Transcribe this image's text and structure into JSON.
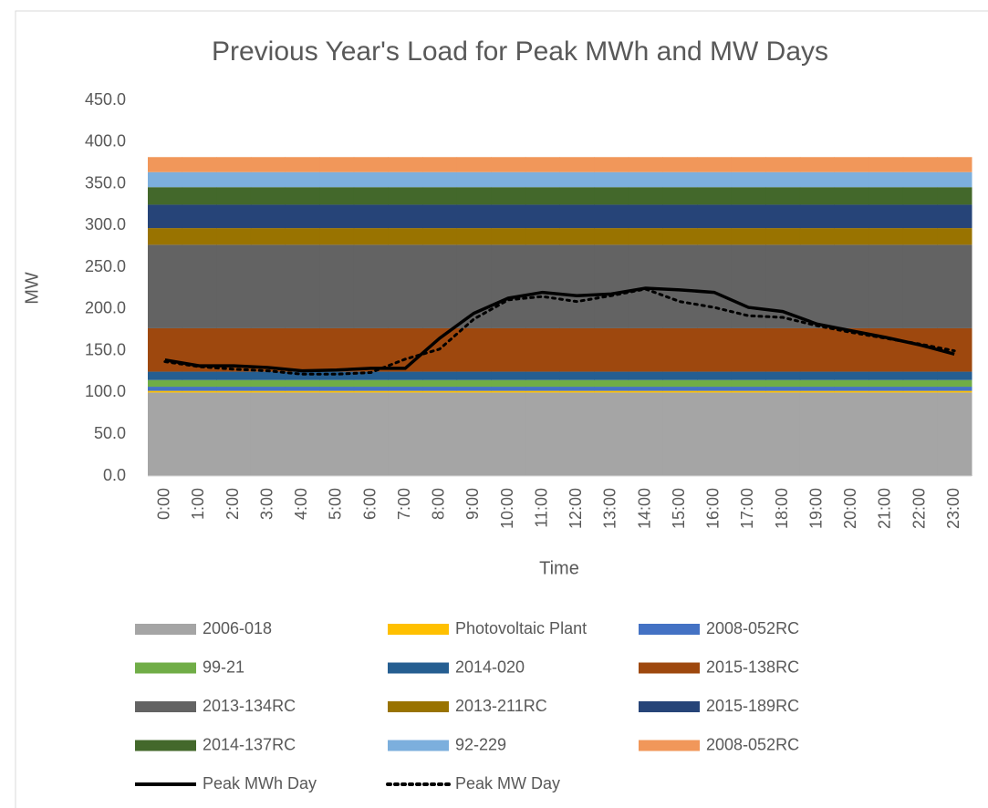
{
  "chart_data": {
    "type": "area",
    "title": "Previous Year's Load for Peak MWh and MW Days",
    "x_label": "Time",
    "y_label": "MW",
    "categories": [
      "0:00",
      "1:00",
      "2:00",
      "3:00",
      "4:00",
      "5:00",
      "6:00",
      "7:00",
      "8:00",
      "9:00",
      "10:00",
      "11:00",
      "12:00",
      "13:00",
      "14:00",
      "15:00",
      "16:00",
      "17:00",
      "18:00",
      "19:00",
      "20:00",
      "21:00",
      "22:00",
      "23:00"
    ],
    "ylim": [
      0,
      450
    ],
    "yticks": [
      {
        "value": 0,
        "label": "0.0"
      },
      {
        "value": 50,
        "label": "50.0"
      },
      {
        "value": 100,
        "label": "100.0"
      },
      {
        "value": 150,
        "label": "150.0"
      },
      {
        "value": 200,
        "label": "200.0"
      },
      {
        "value": 250,
        "label": "250.0"
      },
      {
        "value": 300,
        "label": "300.0"
      },
      {
        "value": 350,
        "label": "350.0"
      },
      {
        "value": 400,
        "label": "400.0"
      },
      {
        "value": 450,
        "label": "450.0"
      }
    ],
    "stacked": true,
    "series": [
      {
        "name": "2006-018",
        "type": "area",
        "color": "#a5a5a5",
        "values": [
          100,
          100,
          100,
          100,
          100,
          100,
          100,
          100,
          100,
          100,
          100,
          100,
          100,
          100,
          100,
          100,
          100,
          100,
          100,
          100,
          100,
          100,
          100,
          100
        ]
      },
      {
        "name": "Photovoltaic Plant",
        "type": "area",
        "color": "#ffc000",
        "values": [
          2,
          2,
          2,
          2,
          2,
          2,
          2,
          2,
          2,
          2,
          2,
          2,
          2,
          2,
          2,
          2,
          2,
          2,
          2,
          2,
          2,
          2,
          2,
          2
        ]
      },
      {
        "name": "2008-052RC",
        "type": "area",
        "color": "#4472c4",
        "values": [
          5,
          5,
          5,
          5,
          5,
          5,
          5,
          5,
          5,
          5,
          5,
          5,
          5,
          5,
          5,
          5,
          5,
          5,
          5,
          5,
          5,
          5,
          5,
          5
        ]
      },
      {
        "name": "99-21",
        "type": "area",
        "color": "#70ad47",
        "values": [
          8,
          8,
          8,
          8,
          8,
          8,
          8,
          8,
          8,
          8,
          8,
          8,
          8,
          8,
          8,
          8,
          8,
          8,
          8,
          8,
          8,
          8,
          8,
          8
        ]
      },
      {
        "name": "2014-020",
        "type": "area",
        "color": "#255e91",
        "values": [
          10,
          10,
          10,
          10,
          10,
          10,
          10,
          10,
          10,
          10,
          10,
          10,
          10,
          10,
          10,
          10,
          10,
          10,
          10,
          10,
          10,
          10,
          10,
          10
        ]
      },
      {
        "name": "2015-138RC",
        "type": "area",
        "color": "#9e480e",
        "values": [
          52,
          52,
          52,
          52,
          52,
          52,
          52,
          52,
          52,
          52,
          52,
          52,
          52,
          52,
          52,
          52,
          52,
          52,
          52,
          52,
          52,
          52,
          52,
          52
        ]
      },
      {
        "name": "2013-134RC",
        "type": "area",
        "color": "#636363",
        "values": [
          100,
          100,
          100,
          100,
          100,
          100,
          100,
          100,
          100,
          100,
          100,
          100,
          100,
          100,
          100,
          100,
          100,
          100,
          100,
          100,
          100,
          100,
          100,
          100
        ]
      },
      {
        "name": "2013-211RC",
        "type": "area",
        "color": "#997300",
        "values": [
          20,
          20,
          20,
          20,
          20,
          20,
          20,
          20,
          20,
          20,
          20,
          20,
          20,
          20,
          20,
          20,
          20,
          20,
          20,
          20,
          20,
          20,
          20,
          20
        ]
      },
      {
        "name": "2015-189RC",
        "type": "area",
        "color": "#264478",
        "values": [
          28,
          28,
          28,
          28,
          28,
          28,
          28,
          28,
          28,
          28,
          28,
          28,
          28,
          28,
          28,
          28,
          28,
          28,
          28,
          28,
          28,
          28,
          28,
          28
        ]
      },
      {
        "name": "2014-137RC",
        "type": "area",
        "color": "#43682b",
        "values": [
          21,
          21,
          21,
          21,
          21,
          21,
          21,
          21,
          21,
          21,
          21,
          21,
          21,
          21,
          21,
          21,
          21,
          21,
          21,
          21,
          21,
          21,
          21,
          21
        ]
      },
      {
        "name": "92-229",
        "type": "area",
        "color": "#7cafdd",
        "values": [
          18,
          18,
          18,
          18,
          18,
          18,
          18,
          18,
          18,
          18,
          18,
          18,
          18,
          18,
          18,
          18,
          18,
          18,
          18,
          18,
          18,
          18,
          18,
          18
        ]
      },
      {
        "name": "2008-052RC",
        "type": "area",
        "color": "#f1975a",
        "values": [
          18,
          18,
          18,
          18,
          18,
          18,
          18,
          18,
          18,
          18,
          18,
          18,
          18,
          18,
          18,
          18,
          18,
          18,
          18,
          18,
          18,
          18,
          18,
          18
        ]
      },
      {
        "name": "Peak MWh Day",
        "type": "line",
        "color": "#000000",
        "dash": "solid",
        "values": [
          139,
          132,
          132,
          130,
          126,
          127,
          129,
          129,
          165,
          195,
          213,
          220,
          216,
          218,
          225,
          223,
          220,
          202,
          197,
          182,
          174,
          166,
          157,
          146
        ]
      },
      {
        "name": "Peak MW Day",
        "type": "line",
        "color": "#000000",
        "dash": "dotted",
        "values": [
          137,
          131,
          128,
          126,
          122,
          122,
          124,
          140,
          152,
          188,
          211,
          215,
          209,
          216,
          224,
          209,
          202,
          192,
          190,
          180,
          172,
          165,
          158,
          150
        ]
      }
    ]
  }
}
